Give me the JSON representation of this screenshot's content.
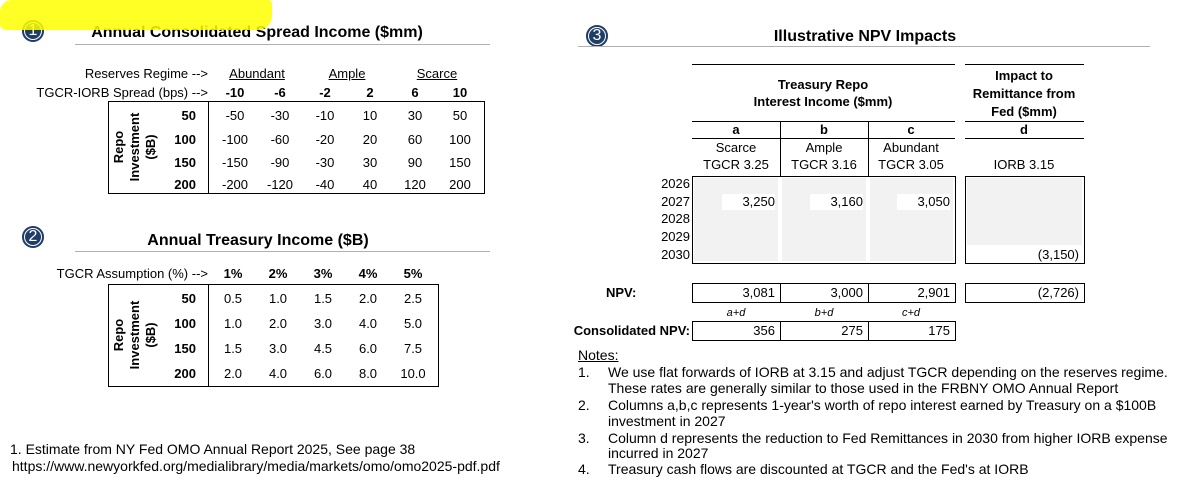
{
  "section1": {
    "number": "1",
    "title": "Annual Consolidated Spread Income ($mm)",
    "regime_label": "Reserves Regime -->",
    "regimes": [
      "Abundant",
      "Ample",
      "Scarce"
    ],
    "spread_label": "TGCR-IORB Spread (bps) -->",
    "spreads": [
      "-10",
      "-6",
      "-2",
      "2",
      "6",
      "10"
    ],
    "side_label": [
      "Repo",
      "Investment",
      "($B)"
    ],
    "rows": [
      {
        "label": "50",
        "values": [
          "-50",
          "-30",
          "-10",
          "10",
          "30",
          "50"
        ]
      },
      {
        "label": "100",
        "values": [
          "-100",
          "-60",
          "-20",
          "20",
          "60",
          "100"
        ]
      },
      {
        "label": "150",
        "values": [
          "-150",
          "-90",
          "-30",
          "30",
          "90",
          "150"
        ]
      },
      {
        "label": "200",
        "values": [
          "-200",
          "-120",
          "-40",
          "40",
          "120",
          "200"
        ]
      }
    ]
  },
  "section2": {
    "number": "2",
    "title": "Annual Treasury Income ($B)",
    "assumption_label": "TGCR Assumption (%) -->",
    "columns": [
      "1%",
      "2%",
      "3%",
      "4%",
      "5%"
    ],
    "side_label": [
      "Repo",
      "Investment",
      "($B)"
    ],
    "rows": [
      {
        "label": "50",
        "values": [
          "0.5",
          "1.0",
          "1.5",
          "2.0",
          "2.5"
        ]
      },
      {
        "label": "100",
        "values": [
          "1.0",
          "2.0",
          "3.0",
          "4.0",
          "5.0"
        ]
      },
      {
        "label": "150",
        "values": [
          "1.5",
          "3.0",
          "4.5",
          "6.0",
          "7.5"
        ]
      },
      {
        "label": "200",
        "values": [
          "2.0",
          "4.0",
          "6.0",
          "8.0",
          "10.0"
        ]
      }
    ]
  },
  "footnote": [
    "1. Estimate from NY Fed OMO Annual Report 2025, See page 38",
    "https://www.newyorkfed.org/medialibrary/media/markets/omo/omo2025-pdf.pdf"
  ],
  "section3": {
    "number": "3",
    "title": "Illustrative NPV Impacts",
    "group_headers": [
      [
        "Treasury Repo",
        "Interest Income ($mm)"
      ],
      [
        "Impact to",
        "Remittance from",
        "Fed ($mm)"
      ]
    ],
    "columns": [
      {
        "letter": "a",
        "lines": [
          "Scarce",
          "TGCR 3.25"
        ]
      },
      {
        "letter": "b",
        "lines": [
          "Ample",
          "TGCR 3.16"
        ]
      },
      {
        "letter": "c",
        "lines": [
          "Abundant",
          "TGCR 3.05"
        ]
      },
      {
        "letter": "d",
        "lines": [
          "IORB 3.15"
        ]
      }
    ],
    "years": [
      "2026",
      "2027",
      "2028",
      "2029",
      "2030"
    ],
    "cells": [
      [
        null,
        null,
        null,
        null
      ],
      [
        "3,250",
        "3,160",
        "3,050",
        null
      ],
      [
        null,
        null,
        null,
        null
      ],
      [
        null,
        null,
        null,
        null
      ],
      [
        null,
        null,
        null,
        "(3,150)"
      ]
    ],
    "npv_label": "NPV:",
    "npv": [
      "3,081",
      "3,000",
      "2,901",
      "(2,726)"
    ],
    "consolidated_label": "Consolidated NPV:",
    "formulas": [
      "a+d",
      "b+d",
      "c+d"
    ],
    "consolidated": [
      "356",
      "275",
      "175"
    ]
  },
  "notes": {
    "title": "Notes:",
    "items": [
      {
        "number": "1.",
        "lines": [
          "We use flat forwards of IORB at 3.15 and adjust TGCR depending on the reserves regime.",
          "These rates are generally similar to those used in the FRBNY OMO Annual Report"
        ]
      },
      {
        "number": "2.",
        "lines": [
          "Columns a,b,c represents 1-year's worth of repo interest earned by Treasury on a $100B",
          "investment in 2027"
        ]
      },
      {
        "number": "3.",
        "lines": [
          "Column d represents the reduction to Fed Remittances in 2030 from higher IORB expense",
          "incurred in 2027"
        ]
      },
      {
        "number": "4.",
        "lines": [
          "Treasury cash flows are discounted at TGCR and the Fed's at IORB"
        ]
      }
    ]
  }
}
